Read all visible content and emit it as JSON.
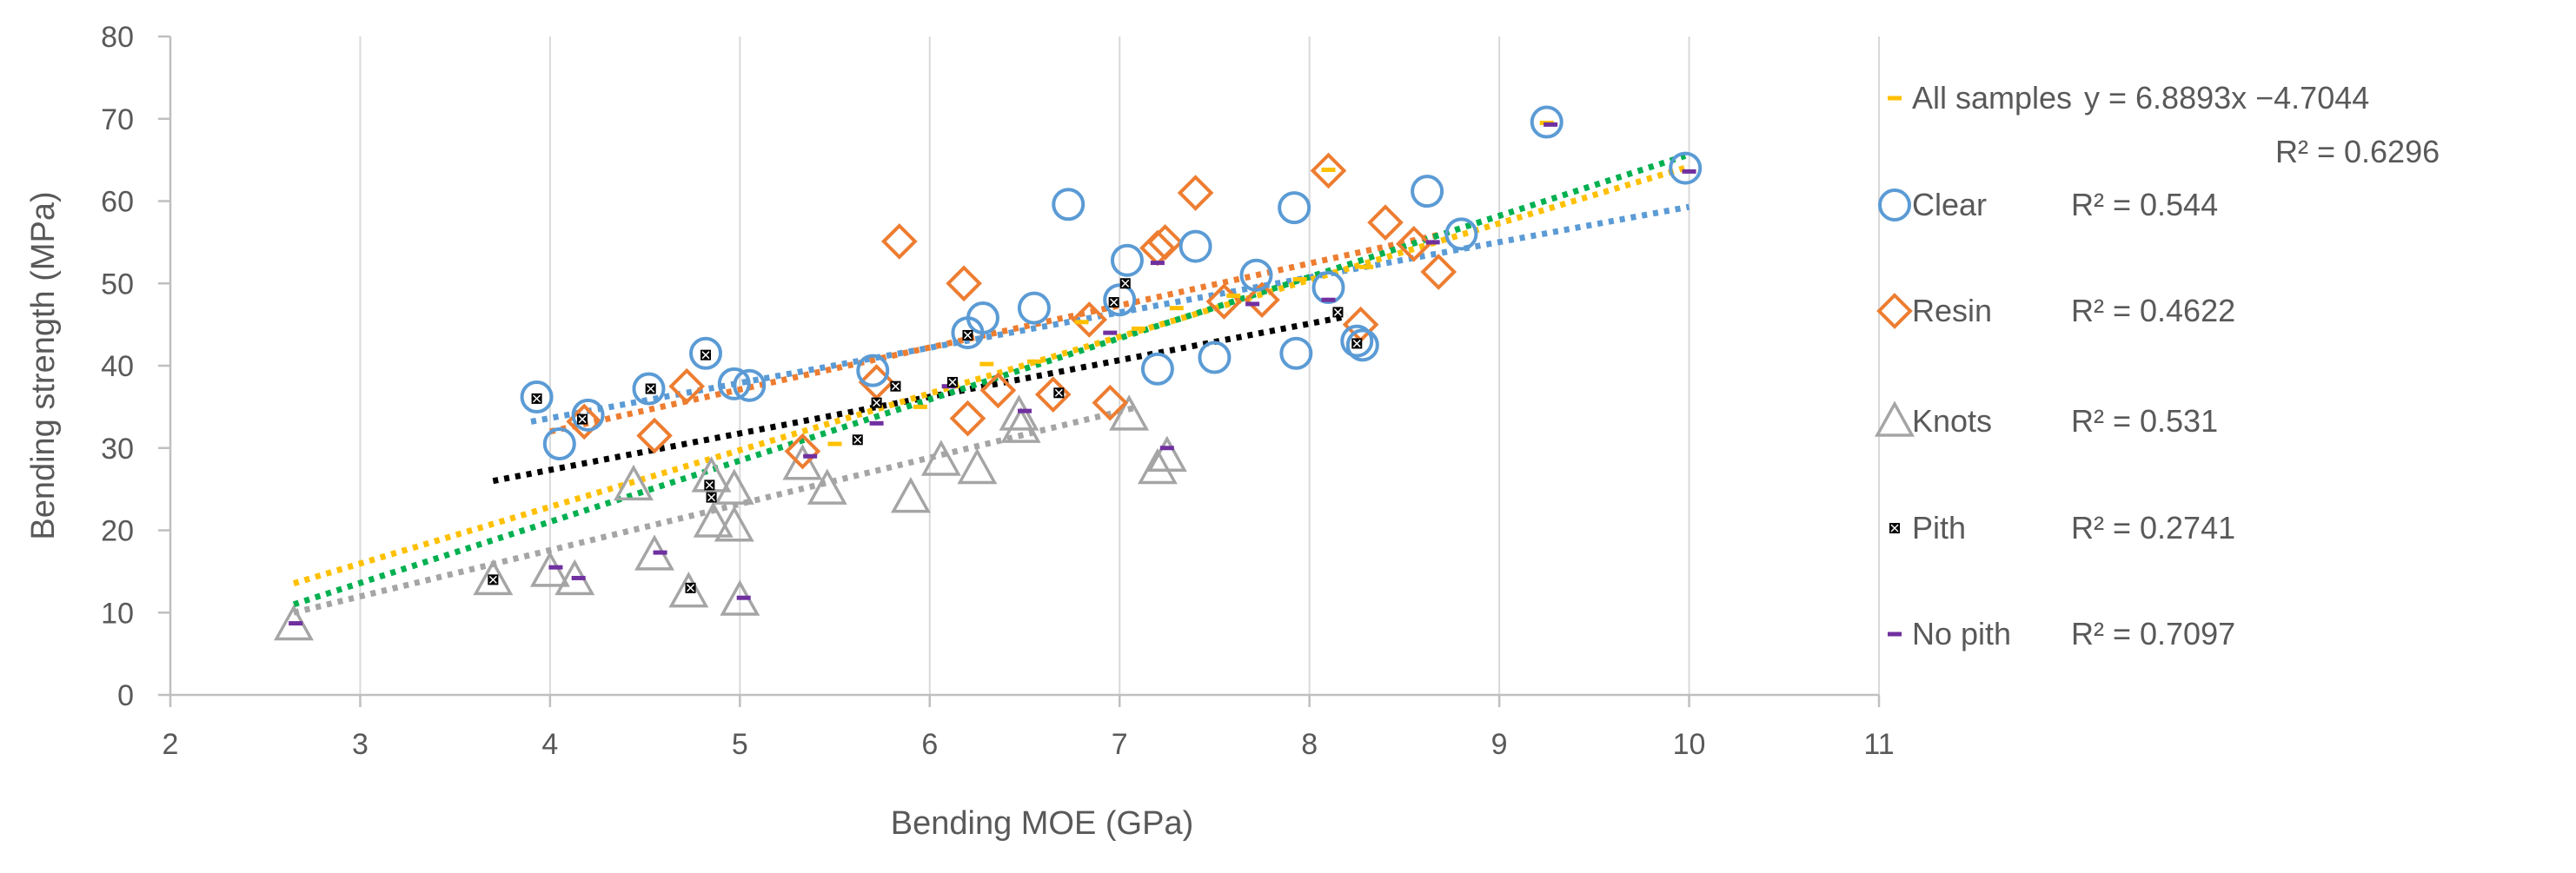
{
  "chart_data": {
    "type": "scatter",
    "title": "",
    "xlabel": "Bending MOE (GPa)",
    "ylabel": "Bending strength (MPa)",
    "xlim": [
      2,
      11
    ],
    "ylim": [
      0,
      80
    ],
    "x_ticks": [
      "2",
      "3",
      "4",
      "5",
      "6",
      "7",
      "8",
      "9",
      "10",
      "11"
    ],
    "y_ticks": [
      "0",
      "10",
      "20",
      "30",
      "40",
      "50",
      "60",
      "70",
      "80"
    ],
    "grid": "vertical",
    "legend_position": "right",
    "series": [
      {
        "name": "Clear",
        "marker": "circle",
        "color": "#5b9bd5",
        "trend": {
          "x": [
            3.9,
            10.0
          ],
          "y": [
            33.2,
            59.3
          ]
        },
        "points": [
          [
            3.93,
            36.2
          ],
          [
            4.05,
            30.5
          ],
          [
            4.2,
            34.0
          ],
          [
            4.52,
            37.2
          ],
          [
            4.82,
            41.5
          ],
          [
            4.97,
            37.8
          ],
          [
            5.05,
            37.6
          ],
          [
            5.7,
            39.4
          ],
          [
            6.2,
            44.0
          ],
          [
            6.28,
            45.8
          ],
          [
            6.55,
            47.0
          ],
          [
            6.73,
            59.6
          ],
          [
            7.0,
            48.0
          ],
          [
            7.04,
            52.8
          ],
          [
            7.2,
            39.6
          ],
          [
            7.4,
            54.5
          ],
          [
            7.5,
            41.0
          ],
          [
            7.72,
            51.0
          ],
          [
            7.92,
            59.2
          ],
          [
            7.93,
            41.5
          ],
          [
            8.1,
            49.5
          ],
          [
            8.25,
            43.0
          ],
          [
            8.28,
            42.5
          ],
          [
            8.62,
            61.2
          ],
          [
            8.8,
            56.0
          ],
          [
            9.25,
            69.6
          ],
          [
            9.98,
            64.0
          ]
        ]
      },
      {
        "name": "Resin",
        "marker": "diamond",
        "color": "#ed7d31",
        "trend": {
          "x": [
            4.0,
            8.7
          ],
          "y": [
            32.0,
            56.0
          ]
        },
        "points": [
          [
            4.18,
            33.2
          ],
          [
            4.55,
            31.5
          ],
          [
            4.72,
            37.5
          ],
          [
            5.33,
            29.6
          ],
          [
            5.72,
            38.0
          ],
          [
            5.84,
            55.1
          ],
          [
            6.18,
            50.0
          ],
          [
            6.2,
            33.6
          ],
          [
            6.36,
            37.0
          ],
          [
            6.65,
            36.5
          ],
          [
            6.84,
            45.6
          ],
          [
            6.95,
            35.5
          ],
          [
            7.2,
            54.3
          ],
          [
            7.24,
            55.0
          ],
          [
            7.4,
            61.0
          ],
          [
            7.55,
            47.8
          ],
          [
            7.75,
            48.0
          ],
          [
            8.1,
            63.7
          ],
          [
            8.27,
            45.0
          ],
          [
            8.4,
            57.4
          ],
          [
            8.68,
            51.4
          ],
          [
            8.55,
            54.8
          ]
        ]
      },
      {
        "name": "Knots",
        "marker": "triangle",
        "color": "#a5a5a5",
        "trend": {
          "x": [
            2.65,
            7.1
          ],
          "y": [
            10.0,
            35.0
          ]
        },
        "points": [
          [
            2.65,
            8.5
          ],
          [
            3.7,
            14.0
          ],
          [
            4.0,
            15.0
          ],
          [
            4.13,
            14.0
          ],
          [
            4.44,
            25.5
          ],
          [
            4.55,
            17.0
          ],
          [
            4.73,
            12.5
          ],
          [
            4.85,
            26.5
          ],
          [
            4.86,
            21.0
          ],
          [
            4.97,
            25.0
          ],
          [
            4.97,
            20.5
          ],
          [
            5.0,
            11.5
          ],
          [
            5.33,
            28.0
          ],
          [
            5.46,
            25.0
          ],
          [
            5.9,
            24.0
          ],
          [
            6.06,
            28.5
          ],
          [
            6.25,
            27.5
          ],
          [
            6.47,
            34.0
          ],
          [
            6.48,
            32.5
          ],
          [
            7.05,
            34.0
          ],
          [
            7.2,
            27.5
          ],
          [
            7.25,
            29.0
          ]
        ]
      },
      {
        "name": "Pith",
        "marker": "x",
        "color": "#000000",
        "trend": {
          "x": [
            3.7,
            8.2
          ],
          "y": [
            26.0,
            46.0
          ]
        },
        "points": [
          [
            3.93,
            36.0
          ],
          [
            4.17,
            33.5
          ],
          [
            4.53,
            37.2
          ],
          [
            4.82,
            41.3
          ],
          [
            4.84,
            25.5
          ],
          [
            4.85,
            24.0
          ],
          [
            4.74,
            13.0
          ],
          [
            3.7,
            14.0
          ],
          [
            5.62,
            31.0
          ],
          [
            5.82,
            37.5
          ],
          [
            5.72,
            35.5
          ],
          [
            6.12,
            38.0
          ],
          [
            6.2,
            43.7
          ],
          [
            6.68,
            36.7
          ],
          [
            6.97,
            47.7
          ],
          [
            7.03,
            50.0
          ],
          [
            8.15,
            46.5
          ],
          [
            8.25,
            42.7
          ]
        ]
      },
      {
        "name": "No pith",
        "marker": "dash",
        "color": "#7030a0",
        "trend": {
          "x": [
            2.65,
            9.98
          ],
          "y": [
            11.0,
            65.5
          ]
        },
        "points": [
          [
            2.66,
            8.7
          ],
          [
            4.03,
            15.5
          ],
          [
            4.15,
            14.2
          ],
          [
            4.58,
            17.3
          ],
          [
            5.02,
            11.8
          ],
          [
            5.37,
            29.0
          ],
          [
            5.72,
            33.0
          ],
          [
            6.1,
            37.5
          ],
          [
            6.5,
            34.5
          ],
          [
            6.95,
            44.0
          ],
          [
            7.2,
            52.5
          ],
          [
            7.25,
            30.0
          ],
          [
            7.7,
            47.5
          ],
          [
            8.1,
            48.0
          ],
          [
            8.65,
            55.0
          ],
          [
            9.27,
            69.3
          ],
          [
            10.0,
            63.6
          ]
        ]
      },
      {
        "name": "All samples",
        "marker": "dash",
        "color": "#ffc000",
        "trend": {
          "x": [
            2.65,
            9.98
          ],
          "y": [
            13.55,
            64.05
          ]
        },
        "points": [
          [
            5.5,
            30.5
          ],
          [
            5.95,
            35.0
          ],
          [
            6.3,
            40.2
          ],
          [
            6.55,
            40.5
          ],
          [
            6.8,
            45.3
          ],
          [
            7.1,
            44.5
          ],
          [
            7.3,
            47.0
          ],
          [
            7.6,
            48.5
          ],
          [
            7.95,
            50.5
          ],
          [
            8.3,
            52.0
          ],
          [
            8.1,
            63.8
          ],
          [
            9.25,
            69.5
          ]
        ]
      }
    ],
    "legend": [
      {
        "series": "All samples",
        "label": "All samples",
        "stats": [
          "y = 6.8893x −4.7044",
          "R² = 0.6296"
        ]
      },
      {
        "series": "Clear",
        "label": "Clear",
        "stats": [
          "R² = 0.544"
        ]
      },
      {
        "series": "Resin",
        "label": "Resin",
        "stats": [
          "R² = 0.4622"
        ]
      },
      {
        "series": "Knots",
        "label": "Knots",
        "stats": [
          "R² = 0.531"
        ]
      },
      {
        "series": "Pith",
        "label": "Pith",
        "stats": [
          "R² = 0.2741"
        ]
      },
      {
        "series": "No pith",
        "label": "No pith",
        "stats": [
          "R² = 0.7097"
        ]
      }
    ]
  },
  "colors": {
    "axis": "#bfbfbf",
    "grid": "#d9d9d9",
    "text": "#595959",
    "background": "#ffffff",
    "trend_all": "#ffc000",
    "trend_nopith": "#00b050"
  }
}
